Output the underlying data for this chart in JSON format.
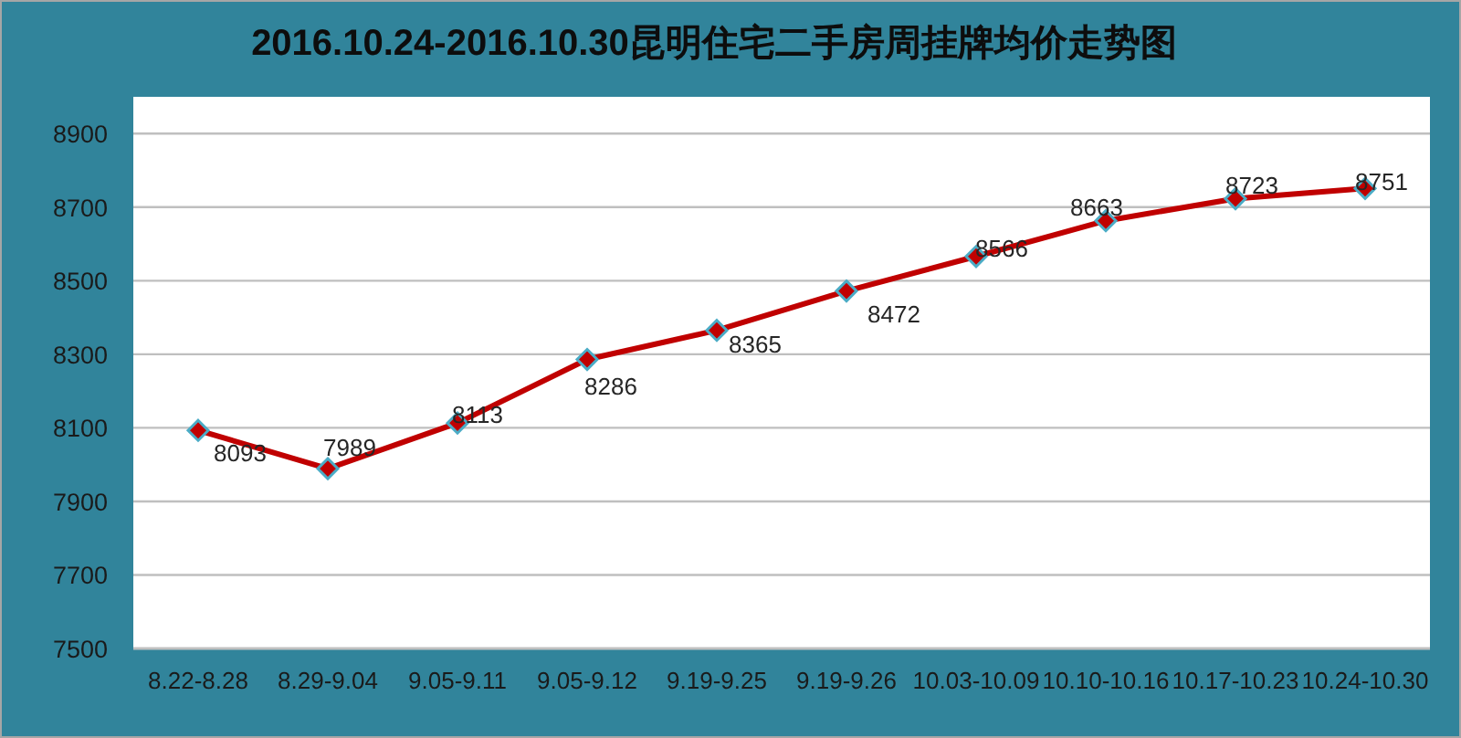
{
  "chart_data": {
    "type": "line",
    "title": "2016.10.24-2016.10.30昆明住宅二手房周挂牌均价走势图",
    "categories": [
      "8.22-8.28",
      "8.29-9.04",
      "9.05-9.11",
      "9.05-9.12",
      "9.19-9.25",
      "9.19-9.26",
      "10.03-10.09",
      "10.10-10.16",
      "10.17-10.23",
      "10.24-10.30"
    ],
    "series": [
      {
        "color": "#c00000",
        "values": [
          8093,
          7989,
          8113,
          8286,
          8365,
          8472,
          8566,
          8663,
          8723,
          8751
        ]
      }
    ],
    "ylim": [
      7500,
      9000
    ],
    "yticks": [
      7500,
      7700,
      7900,
      8100,
      8300,
      8500,
      8700,
      8900
    ],
    "grid": "y",
    "marker": "diamond",
    "data_labels": true
  }
}
